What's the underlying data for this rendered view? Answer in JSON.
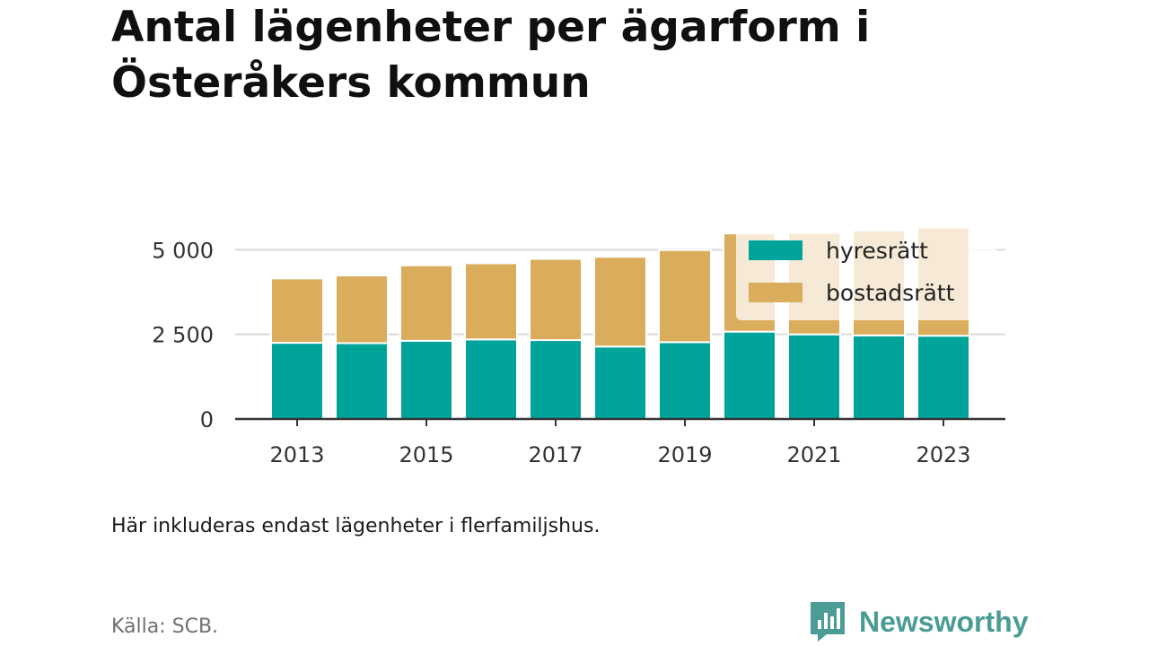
{
  "title": "Antal lägenheter per ägarform i Österåkers kommun",
  "note": "Här inkluderas endast lägenheter i flerfamiljshus.",
  "source": "Källa: SCB.",
  "brand": {
    "name": "Newsworthy",
    "icon": "newsworthy-logo-icon",
    "color": "#4a9c95"
  },
  "chart_data": {
    "type": "bar",
    "stacked": true,
    "title": "Antal lägenheter per ägarform i Österåkers kommun",
    "xlabel": "",
    "ylabel": "",
    "categories": [
      "2013",
      "2014",
      "2015",
      "2016",
      "2017",
      "2018",
      "2019",
      "2020",
      "2021",
      "2022",
      "2023"
    ],
    "x_tick_labels": [
      "2013",
      "2015",
      "2017",
      "2019",
      "2021",
      "2023"
    ],
    "y_ticks": [
      0,
      2500,
      5000
    ],
    "y_tick_labels": [
      "0",
      "2 500",
      "5 000"
    ],
    "ylim": [
      0,
      5300
    ],
    "grid": true,
    "legend_position": "top-right",
    "series": [
      {
        "name": "hyresrätt",
        "color": "#00a39a",
        "values": [
          2250,
          2240,
          2310,
          2350,
          2330,
          2140,
          2270,
          2580,
          2500,
          2470,
          2460
        ]
      },
      {
        "name": "bostadsrätt",
        "color": "#d9ad5b",
        "values": [
          1900,
          2000,
          2230,
          2250,
          2400,
          2650,
          2720,
          2900,
          3000,
          3100,
          3200
        ]
      }
    ]
  }
}
